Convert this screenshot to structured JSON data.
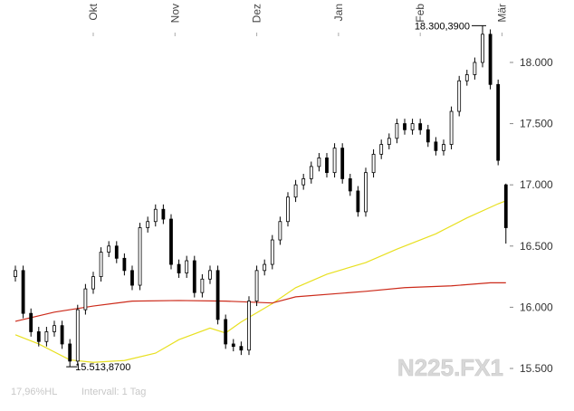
{
  "chart_data": {
    "type": "candlestick",
    "x": [
      0,
      2,
      4,
      6,
      8,
      10,
      12,
      14,
      16,
      18,
      20,
      22,
      24,
      26,
      28,
      30,
      32,
      34,
      36,
      38,
      40,
      42,
      44,
      46,
      48,
      50,
      52,
      54,
      56,
      58,
      60,
      62,
      64,
      66,
      68,
      70,
      72,
      74,
      76,
      78,
      80,
      82,
      84,
      86,
      88,
      90,
      92,
      94,
      96,
      98,
      100,
      102,
      104,
      106,
      108,
      110,
      112,
      114,
      116,
      118,
      120,
      122,
      124,
      126
    ],
    "open": [
      16250,
      16300,
      15950,
      15800,
      15720,
      15800,
      15850,
      15700,
      15560,
      15980,
      16150,
      16250,
      16450,
      16500,
      16400,
      16300,
      16180,
      16650,
      16700,
      16800,
      16720,
      16350,
      16280,
      16380,
      16120,
      16230,
      16300,
      15900,
      15700,
      15680,
      15650,
      16050,
      16300,
      16350,
      16550,
      16700,
      16900,
      17000,
      17050,
      17150,
      17220,
      17100,
      17300,
      17050,
      16950,
      16780,
      17100,
      17250,
      17330,
      17380,
      17500,
      17450,
      17500,
      17450,
      17350,
      17280,
      17330,
      17600,
      17850,
      17900,
      18000,
      18230,
      17820,
      17000
    ],
    "high": [
      16340,
      16340,
      15990,
      15840,
      15840,
      15890,
      15890,
      15740,
      16020,
      16190,
      16290,
      16490,
      16540,
      16540,
      16440,
      16340,
      16690,
      16740,
      16840,
      16840,
      16760,
      16390,
      16420,
      16420,
      16270,
      16340,
      16340,
      15940,
      15740,
      15720,
      16090,
      16340,
      16390,
      16590,
      16740,
      16940,
      17040,
      17090,
      17190,
      17260,
      17260,
      17340,
      17340,
      17090,
      16990,
      17140,
      17290,
      17370,
      17420,
      17540,
      17540,
      17540,
      17540,
      17490,
      17390,
      17370,
      17640,
      17890,
      17940,
      18040,
      18300.39,
      18270,
      17860,
      17010
    ],
    "low": [
      16210,
      15910,
      15760,
      15680,
      15680,
      15760,
      15660,
      15513.87,
      15520,
      15940,
      16110,
      16210,
      16410,
      16360,
      16260,
      16140,
      16140,
      16610,
      16660,
      16680,
      16310,
      16240,
      16240,
      16080,
      16080,
      16190,
      15860,
      15660,
      15640,
      15610,
      15610,
      16010,
      16260,
      16310,
      16510,
      16660,
      16860,
      16960,
      17010,
      17110,
      17060,
      17060,
      17010,
      16910,
      16740,
      16740,
      17060,
      17210,
      17290,
      17340,
      17410,
      17410,
      17410,
      17310,
      17240,
      17240,
      17290,
      17560,
      17810,
      17860,
      17960,
      17780,
      17160,
      16520
    ],
    "close": [
      16300,
      15950,
      15800,
      15720,
      15800,
      15850,
      15700,
      15560,
      15980,
      16150,
      16250,
      16450,
      16500,
      16400,
      16300,
      16180,
      16650,
      16700,
      16800,
      16720,
      16350,
      16280,
      16380,
      16120,
      16230,
      16300,
      15900,
      15700,
      15680,
      15650,
      16050,
      16300,
      16350,
      16550,
      16700,
      16900,
      17000,
      17050,
      17150,
      17220,
      17100,
      17300,
      17050,
      16950,
      16780,
      17100,
      17250,
      17330,
      17380,
      17500,
      17450,
      17500,
      17450,
      17350,
      17280,
      17330,
      17600,
      17850,
      17900,
      18000,
      18230,
      17820,
      17200,
      16650
    ],
    "series": [
      {
        "color": "#e8e020",
        "x": [
          0,
          6,
          14,
          20,
          28,
          36,
          42,
          50,
          54,
          58,
          66,
          72,
          80,
          90,
          98,
          108,
          116,
          124,
          126
        ],
        "values": [
          15775,
          15700,
          15570,
          15550,
          15565,
          15625,
          15735,
          15830,
          15790,
          15880,
          16030,
          16160,
          16270,
          16365,
          16475,
          16600,
          16730,
          16845,
          16870
        ]
      },
      {
        "color": "#cc2a1a",
        "x": [
          0,
          10,
          20,
          30,
          42,
          54,
          66,
          72,
          90,
          100,
          112,
          122,
          126
        ],
        "values": [
          15885,
          15960,
          16010,
          16050,
          16055,
          16050,
          16035,
          16085,
          16130,
          16160,
          16175,
          16200,
          16200
        ]
      }
    ],
    "xlim": [
      -3.95,
      126.98
    ],
    "xticks": [
      {
        "value": 20,
        "label": "Okt"
      },
      {
        "value": 41,
        "label": "Nov"
      },
      {
        "value": 62,
        "label": "Dez"
      },
      {
        "value": 83,
        "label": "Jan"
      },
      {
        "value": 104,
        "label": "Feb"
      },
      {
        "value": 125,
        "label": "Mär"
      }
    ],
    "ylim": [
      15256,
      18510
    ],
    "yticks": [
      {
        "value": 15500,
        "label": "15.500"
      },
      {
        "value": 16000,
        "label": "16.000"
      },
      {
        "value": 16500,
        "label": "16.500"
      },
      {
        "value": 17000,
        "label": "17.000"
      },
      {
        "value": 17500,
        "label": "17.500"
      },
      {
        "value": 18000,
        "label": "18.000"
      }
    ],
    "annotations": [
      {
        "x": 120,
        "value": 18300.39,
        "label": "18.300,3900"
      },
      {
        "x": 14,
        "value": 15513.87,
        "label": "15.513,8700"
      }
    ],
    "watermark": "N225.FX1",
    "footer_left": "17,96%HL",
    "footer_interval": "Intervall: 1 Tag"
  }
}
